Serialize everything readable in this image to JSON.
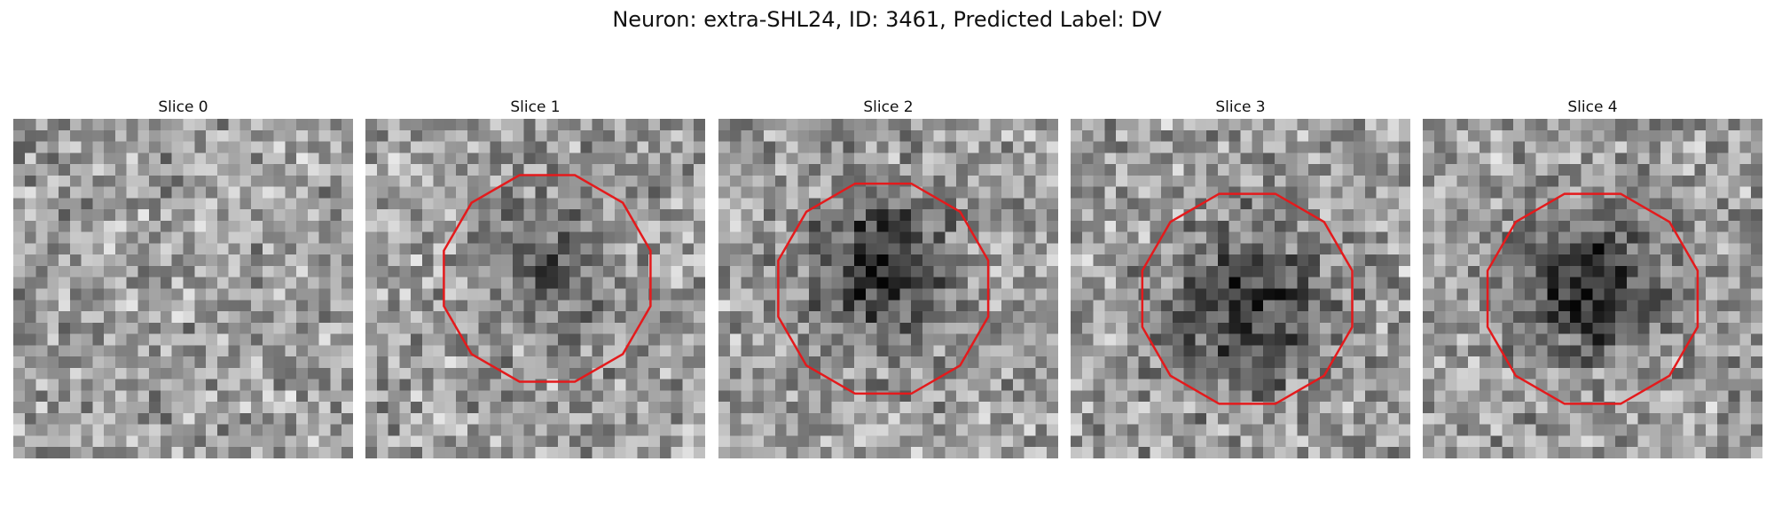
{
  "figure": {
    "title": "Neuron: extra-SHL24, ID: 3461, Predicted Label: DV"
  },
  "panels": [
    {
      "title": "Slice 0",
      "roi": false,
      "blob": [
        0.5,
        0.5,
        0.2
      ],
      "dark": 0.0,
      "seed": 11
    },
    {
      "title": "Slice 1",
      "roi": true,
      "roi_center": [
        0.535,
        0.47
      ],
      "roi_radius": 0.315,
      "blob": [
        0.54,
        0.45,
        0.19
      ],
      "dark": 0.28,
      "seed": 23
    },
    {
      "title": "Slice 2",
      "roi": true,
      "roi_center": [
        0.485,
        0.5
      ],
      "roi_radius": 0.32,
      "blob": [
        0.47,
        0.44,
        0.22
      ],
      "dark": 0.45,
      "seed": 37
    },
    {
      "title": "Slice 3",
      "roi": true,
      "roi_center": [
        0.52,
        0.53
      ],
      "roi_radius": 0.32,
      "blob": [
        0.52,
        0.55,
        0.26
      ],
      "dark": 0.4,
      "seed": 41
    },
    {
      "title": "Slice 4",
      "roi": true,
      "roi_center": [
        0.5,
        0.53
      ],
      "roi_radius": 0.32,
      "blob": [
        0.5,
        0.49,
        0.22
      ],
      "dark": 0.48,
      "seed": 53
    }
  ],
  "roi_color": "#e41a1c"
}
